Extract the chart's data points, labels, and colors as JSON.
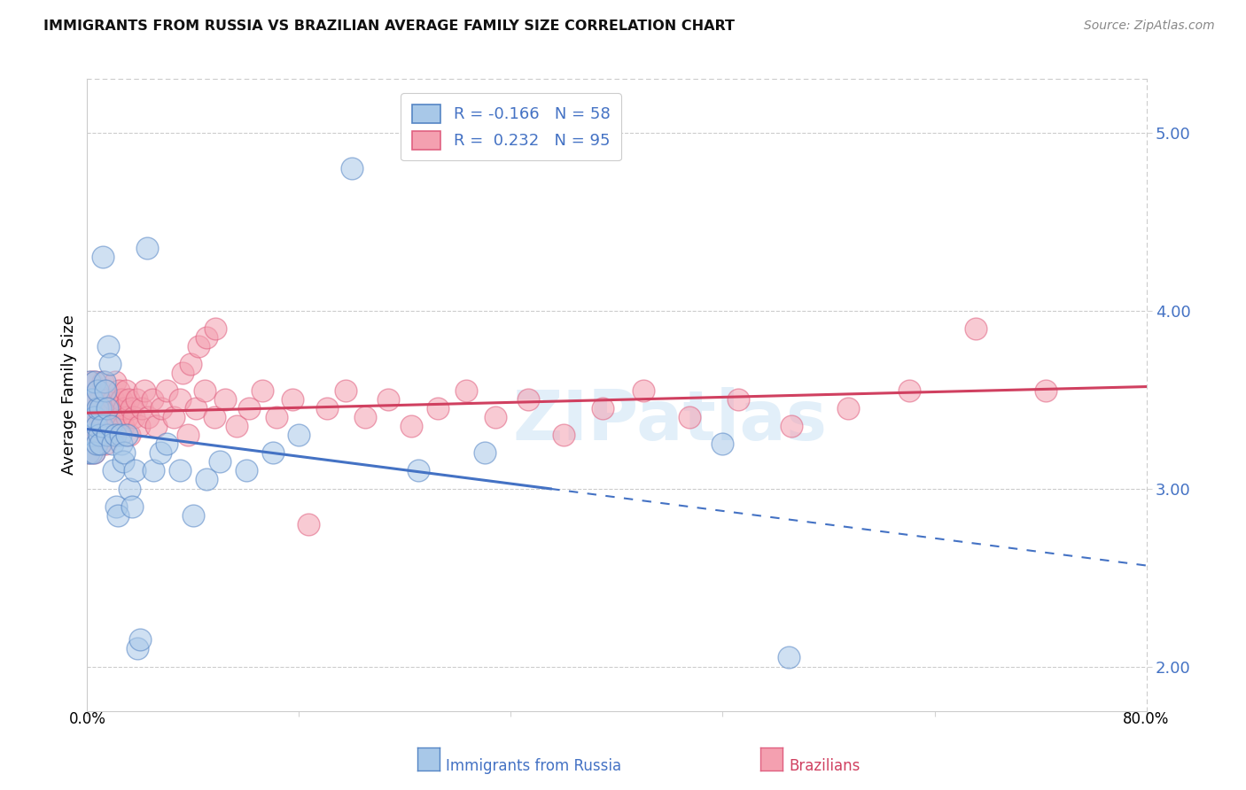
{
  "title": "IMMIGRANTS FROM RUSSIA VS BRAZILIAN AVERAGE FAMILY SIZE CORRELATION CHART",
  "source": "Source: ZipAtlas.com",
  "ylabel": "Average Family Size",
  "yticks": [
    2.0,
    3.0,
    4.0,
    5.0
  ],
  "xlim": [
    0.0,
    0.8
  ],
  "ylim": [
    1.75,
    5.3
  ],
  "blue_color": "#a8c8e8",
  "pink_color": "#f4a0b0",
  "blue_edge_color": "#5585c5",
  "pink_edge_color": "#e06080",
  "blue_line_color": "#4472c4",
  "pink_line_color": "#d04060",
  "watermark": "ZIPatlas",
  "blue_R": -0.166,
  "pink_R": 0.232,
  "blue_N": 58,
  "pink_N": 95,
  "blue_scatter_x": [
    0.001,
    0.002,
    0.002,
    0.003,
    0.003,
    0.004,
    0.004,
    0.005,
    0.005,
    0.006,
    0.006,
    0.007,
    0.007,
    0.008,
    0.008,
    0.009,
    0.01,
    0.01,
    0.011,
    0.012,
    0.013,
    0.014,
    0.015,
    0.015,
    0.016,
    0.017,
    0.018,
    0.019,
    0.02,
    0.021,
    0.022,
    0.023,
    0.025,
    0.026,
    0.027,
    0.028,
    0.03,
    0.032,
    0.034,
    0.036,
    0.038,
    0.04,
    0.045,
    0.05,
    0.055,
    0.06,
    0.07,
    0.08,
    0.09,
    0.1,
    0.12,
    0.14,
    0.16,
    0.2,
    0.25,
    0.3,
    0.48,
    0.53
  ],
  "blue_scatter_y": [
    3.2,
    3.3,
    3.6,
    3.5,
    3.2,
    3.3,
    3.5,
    3.4,
    3.2,
    3.4,
    3.6,
    3.25,
    3.35,
    3.45,
    3.55,
    3.3,
    3.25,
    3.45,
    3.35,
    4.3,
    3.6,
    3.55,
    3.3,
    3.45,
    3.8,
    3.7,
    3.35,
    3.25,
    3.1,
    3.3,
    2.9,
    2.85,
    3.3,
    3.25,
    3.15,
    3.2,
    3.3,
    3.0,
    2.9,
    3.1,
    2.1,
    2.15,
    4.35,
    3.1,
    3.2,
    3.25,
    3.1,
    2.85,
    3.05,
    3.15,
    3.1,
    3.2,
    3.3,
    4.8,
    3.1,
    3.2,
    3.25,
    2.05
  ],
  "pink_scatter_x": [
    0.001,
    0.002,
    0.002,
    0.003,
    0.003,
    0.004,
    0.004,
    0.005,
    0.005,
    0.006,
    0.006,
    0.007,
    0.007,
    0.008,
    0.008,
    0.009,
    0.009,
    0.01,
    0.01,
    0.01,
    0.011,
    0.011,
    0.012,
    0.012,
    0.013,
    0.013,
    0.014,
    0.015,
    0.015,
    0.016,
    0.016,
    0.017,
    0.018,
    0.019,
    0.02,
    0.021,
    0.022,
    0.023,
    0.024,
    0.025,
    0.026,
    0.027,
    0.028,
    0.029,
    0.03,
    0.031,
    0.032,
    0.033,
    0.035,
    0.037,
    0.039,
    0.041,
    0.043,
    0.046,
    0.049,
    0.052,
    0.056,
    0.06,
    0.065,
    0.07,
    0.076,
    0.082,
    0.089,
    0.096,
    0.104,
    0.113,
    0.122,
    0.132,
    0.143,
    0.155,
    0.167,
    0.181,
    0.195,
    0.21,
    0.227,
    0.245,
    0.265,
    0.286,
    0.308,
    0.333,
    0.36,
    0.389,
    0.42,
    0.455,
    0.492,
    0.532,
    0.575,
    0.621,
    0.671,
    0.724,
    0.072,
    0.078,
    0.084,
    0.09,
    0.097
  ],
  "pink_scatter_y": [
    3.2,
    3.3,
    3.5,
    3.4,
    3.6,
    3.3,
    3.5,
    3.35,
    3.2,
    3.4,
    3.6,
    3.25,
    3.35,
    3.45,
    3.55,
    3.3,
    3.4,
    3.25,
    3.45,
    3.5,
    3.35,
    3.3,
    3.4,
    3.6,
    3.45,
    3.35,
    3.25,
    3.4,
    3.3,
    3.5,
    3.35,
    3.45,
    3.35,
    3.3,
    3.5,
    3.6,
    3.35,
    3.45,
    3.55,
    3.4,
    3.5,
    3.35,
    3.45,
    3.55,
    3.4,
    3.5,
    3.3,
    3.45,
    3.4,
    3.5,
    3.35,
    3.45,
    3.55,
    3.4,
    3.5,
    3.35,
    3.45,
    3.55,
    3.4,
    3.5,
    3.3,
    3.45,
    3.55,
    3.4,
    3.5,
    3.35,
    3.45,
    3.55,
    3.4,
    3.5,
    2.8,
    3.45,
    3.55,
    3.4,
    3.5,
    3.35,
    3.45,
    3.55,
    3.4,
    3.5,
    3.3,
    3.45,
    3.55,
    3.4,
    3.5,
    3.35,
    3.45,
    3.55,
    3.9,
    3.55,
    3.65,
    3.7,
    3.8,
    3.85,
    3.9
  ]
}
